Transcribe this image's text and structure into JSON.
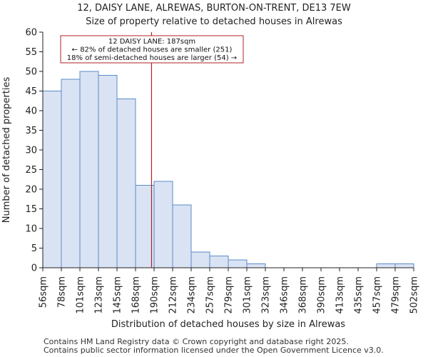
{
  "header": {
    "title": "12, DAISY LANE, ALREWAS, BURTON-ON-TRENT, DE13 7EW",
    "subtitle": "Size of property relative to detached houses in Alrewas"
  },
  "footer": {
    "line1": "Contains HM Land Registry data © Crown copyright and database right 2025.",
    "line2": "Contains public sector information licensed under the Open Government Licence v3.0."
  },
  "colors": {
    "bar_fill": "#dae3f3",
    "bar_stroke": "#5b8bc9",
    "marker_line": "#b22222",
    "annotation_border": "#b22222",
    "axis": "#222222"
  },
  "chart_data": {
    "type": "bar",
    "title": "Size of property relative to detached houses in Alrewas",
    "xlabel": "Distribution of detached houses by size in Alrewas",
    "ylabel": "Number of detached properties",
    "bin_edges": [
      "56sqm",
      "78sqm",
      "101sqm",
      "123sqm",
      "145sqm",
      "168sqm",
      "190sqm",
      "212sqm",
      "234sqm",
      "257sqm",
      "279sqm",
      "301sqm",
      "323sqm",
      "346sqm",
      "368sqm",
      "390sqm",
      "413sqm",
      "435sqm",
      "457sqm",
      "479sqm",
      "502sqm"
    ],
    "values": [
      45,
      48,
      50,
      49,
      43,
      21,
      22,
      16,
      4,
      3,
      2,
      1,
      0,
      0,
      0,
      0,
      0,
      0,
      1,
      1
    ],
    "ylim": [
      0,
      60
    ],
    "yticks": [
      0,
      5,
      10,
      15,
      20,
      25,
      30,
      35,
      40,
      45,
      50,
      55,
      60
    ],
    "grid": false,
    "marker": {
      "value": 187,
      "unit": "sqm",
      "label_lines": [
        "12 DAISY LANE: 187sqm",
        "← 82% of detached houses are smaller (251)",
        "18% of semi-detached houses are larger (54) →"
      ]
    }
  }
}
